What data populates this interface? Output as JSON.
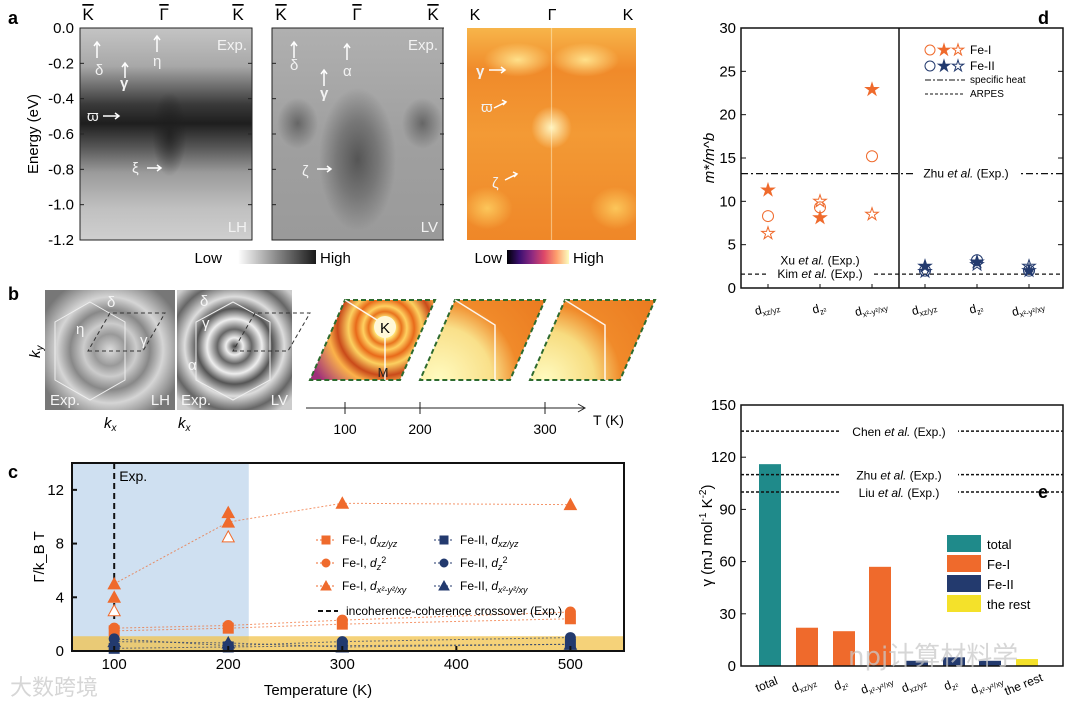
{
  "panel_labels": [
    "a",
    "b",
    "c",
    "d",
    "e"
  ],
  "a": {
    "ylabel": "Energy (eV)",
    "yticks": [
      "0.0",
      "-0.2",
      "-0.4",
      "-0.6",
      "-0.8",
      "-1.0",
      "-1.2"
    ],
    "kpoints": [
      "K",
      "Γ",
      "K"
    ],
    "lh": {
      "tag": "Exp.",
      "pol": "LH",
      "labels": {
        "delta": "δ",
        "gamma": "γ",
        "eta": "η",
        "varpi": "ϖ",
        "xi": "ξ"
      }
    },
    "lv": {
      "tag": "Exp.",
      "pol": "LV",
      "labels": {
        "delta": "δ",
        "gamma": "γ",
        "alpha": "α",
        "zeta": "ζ"
      }
    },
    "theory": {
      "kpoints": [
        "K",
        "Γ",
        "K"
      ],
      "labels": {
        "gamma": "γ",
        "varpi": "ϖ",
        "zeta": "ζ"
      }
    },
    "cbar_gray": {
      "low": "Low",
      "high": "High"
    },
    "cbar_inferno": {
      "low": "Low",
      "high": "High"
    }
  },
  "b": {
    "ky": "k",
    "ky_sub": "y",
    "kx": "k",
    "kx_sub": "x",
    "lh": {
      "tag": "Exp.",
      "pol": "LH",
      "labels": {
        "delta": "δ",
        "eta": "η",
        "gamma": "γ"
      }
    },
    "lv": {
      "tag": "Exp.",
      "pol": "LV",
      "labels": {
        "delta": "δ",
        "gamma": "γ",
        "alpha": "α"
      }
    },
    "sim_labels": {
      "K": "K",
      "M": "M"
    },
    "taxis": {
      "ticks": [
        "100",
        "200",
        "300"
      ],
      "label": "T (K)"
    }
  },
  "watermarks": {
    "left": "大数跨境",
    "right": "npj计算材料学"
  },
  "colors": {
    "fe1": "#ef6a2c",
    "fe2": "#233a6e",
    "total": "#1f8a8a",
    "rest": "#f4e12a",
    "blue_shade": "#c9dcef",
    "yellow_band": "#f2c34c"
  },
  "chart_data": [
    {
      "id": "c",
      "type": "scatter",
      "xlabel": "Temperature (K)",
      "ylabel": "Γ/k_B T",
      "ylabel_parts": [
        "Γ /",
        "k",
        "B",
        " T"
      ],
      "xlim": [
        63,
        547
      ],
      "ylim": [
        0,
        14
      ],
      "xticks": [
        100,
        200,
        300,
        400,
        500
      ],
      "yticks": [
        0,
        4,
        8,
        12
      ],
      "exp_line": {
        "x": 100,
        "label": "Exp."
      },
      "shaded_region": {
        "x": [
          63,
          218
        ]
      },
      "coherence_band": {
        "y": [
          0,
          1.1
        ]
      },
      "series": [
        {
          "name": "Fe-I, d",
          "sub": "xz/yz",
          "sup": "",
          "tail": "",
          "marker": "square",
          "color": "#ef6a2c",
          "x": [
            100,
            200,
            300,
            500
          ],
          "y": [
            1.5,
            1.7,
            2.0,
            2.4
          ]
        },
        {
          "name": "Fe-I, d",
          "sub": "z",
          "sup": "2",
          "tail": "",
          "marker": "circle",
          "color": "#ef6a2c",
          "x": [
            100,
            200,
            300,
            500
          ],
          "y": [
            1.7,
            1.9,
            2.3,
            2.9
          ]
        },
        {
          "name": "Fe-I, d",
          "sub": "x²-y²/xy",
          "sup": "",
          "tail": "",
          "marker": "triangle",
          "color": "#ef6a2c",
          "x": [
            100,
            200,
            300,
            500
          ],
          "y": [
            5.0,
            9.6,
            11.0,
            10.9
          ],
          "extra": {
            "x": [
              100,
              100,
              200,
              200
            ],
            "y": [
              3.0,
              4.0,
              8.5,
              10.3
            ]
          }
        },
        {
          "name": "Fe-II, d",
          "sub": "xz/yz",
          "sup": "",
          "tail": "",
          "marker": "square",
          "color": "#233a6e",
          "x": [
            100,
            200,
            300,
            500
          ],
          "y": [
            0.2,
            0.3,
            0.4,
            0.5
          ]
        },
        {
          "name": "Fe-II, d",
          "sub": "z",
          "sup": "2",
          "tail": "",
          "marker": "circle",
          "color": "#233a6e",
          "x": [
            100,
            200,
            300,
            500
          ],
          "y": [
            0.9,
            0.4,
            0.7,
            1.0
          ]
        },
        {
          "name": "Fe-II, d",
          "sub": "x²-y²/xy",
          "sup": "",
          "tail": "",
          "marker": "triangle",
          "color": "#233a6e",
          "x": [
            100,
            200,
            300,
            500
          ],
          "y": [
            0.7,
            0.6,
            0.3,
            0.5
          ]
        }
      ],
      "legend_extra": "incoherence-coherence crossover (Exp.)",
      "legend_position": "center-right"
    },
    {
      "id": "d",
      "type": "scatter",
      "ylabel": "m*/m^b",
      "ylabel_parts": [
        "m",
        "*/",
        "m",
        "b"
      ],
      "ylim": [
        0,
        30
      ],
      "yticks": [
        0,
        5,
        10,
        15,
        20,
        25,
        30
      ],
      "categories": [
        {
          "b": "d",
          "s": "xz/yz"
        },
        {
          "b": "d",
          "s": "z²"
        },
        {
          "b": "d",
          "s": "x²-y²/xy"
        },
        {
          "b": "d",
          "s": "xz/yz"
        },
        {
          "b": "d",
          "s": "z²"
        },
        {
          "b": "d",
          "s": "x²-y²/xy"
        }
      ],
      "series": [
        {
          "name": "Fe-I circle",
          "marker": "circle-open",
          "color": "#ef6a2c",
          "cats": [
            0,
            1,
            2
          ],
          "y": [
            8.3,
            9.3,
            15.2
          ]
        },
        {
          "name": "Fe-I filled star",
          "marker": "star-filled",
          "color": "#ef6a2c",
          "cats": [
            0,
            1,
            2
          ],
          "y": [
            11.3,
            8.1,
            22.9
          ]
        },
        {
          "name": "Fe-I open star",
          "marker": "star-open",
          "color": "#ef6a2c",
          "cats": [
            0,
            1,
            2
          ],
          "y": [
            6.3,
            10.0,
            8.5
          ]
        },
        {
          "name": "Fe-II circle",
          "marker": "circle-open",
          "color": "#233a6e",
          "cats": [
            3,
            4,
            5
          ],
          "y": [
            2.0,
            3.2,
            2.0
          ]
        },
        {
          "name": "Fe-II filled star",
          "marker": "star-filled",
          "color": "#233a6e",
          "cats": [
            3,
            4,
            5
          ],
          "y": [
            2.5,
            3.0,
            2.0
          ]
        },
        {
          "name": "Fe-II open star",
          "marker": "star-open",
          "color": "#233a6e",
          "cats": [
            3,
            4,
            5
          ],
          "y": [
            1.9,
            2.7,
            2.5
          ]
        }
      ],
      "ref_lines": [
        {
          "y": 13.2,
          "style": "dashdot",
          "label": "Zhu et al. (Exp.)",
          "parts": [
            "Zhu ",
            "et al.",
            " (Exp.)"
          ]
        },
        {
          "y": 1.6,
          "style": "dash",
          "label": "Kim et al. (Exp.)",
          "parts": [
            "Kim ",
            "et al.",
            " (Exp.)"
          ]
        }
      ],
      "annotation": {
        "parts": [
          "Xu ",
          "et al.",
          " (Exp.)"
        ],
        "y": 3.2
      },
      "legend": [
        "Fe-I",
        "Fe-II",
        "specific heat",
        "ARPES"
      ],
      "legend_position": "top-right"
    },
    {
      "id": "e",
      "type": "bar",
      "ylabel": "γ (mJ mol⁻¹ K⁻²)",
      "ylabel_parts": [
        "γ (mJ mol",
        "-1",
        " K",
        "-2",
        ")"
      ],
      "ylim": [
        0,
        150
      ],
      "yticks": [
        0,
        30,
        60,
        90,
        120,
        150
      ],
      "categories": [
        {
          "b": "total",
          "s": ""
        },
        {
          "b": "d",
          "s": "xz/yz"
        },
        {
          "b": "d",
          "s": "z²"
        },
        {
          "b": "d",
          "s": "x²-y²/xy"
        },
        {
          "b": "d",
          "s": "xz/yz"
        },
        {
          "b": "d",
          "s": "z²"
        },
        {
          "b": "d",
          "s": "x²-y²/xy"
        },
        {
          "b": "the rest",
          "s": ""
        }
      ],
      "values": [
        116,
        22,
        20,
        57,
        3,
        5,
        3,
        4
      ],
      "groups": [
        "total",
        "Fe-I",
        "Fe-I",
        "Fe-I",
        "Fe-II",
        "Fe-II",
        "Fe-II",
        "the rest"
      ],
      "ref_lines": [
        {
          "y": 135,
          "parts": [
            "Chen ",
            "et al.",
            "  (Exp.)"
          ]
        },
        {
          "y": 110,
          "parts": [
            "Zhu ",
            "et al.",
            "  (Exp.)"
          ]
        },
        {
          "y": 100,
          "parts": [
            "Liu ",
            "et al.",
            "  (Exp.)"
          ]
        }
      ],
      "legend": [
        "total",
        "Fe-I",
        "Fe-II",
        "the rest"
      ],
      "legend_position": "center-right"
    }
  ]
}
